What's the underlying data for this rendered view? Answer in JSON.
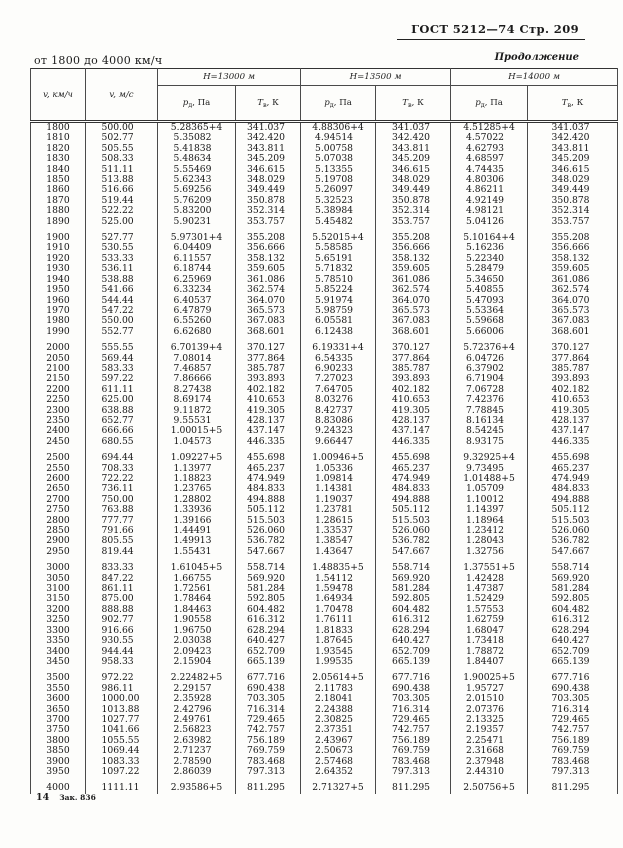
{
  "page": {
    "header_right": "ГОСТ 5212—74 Стр. 209",
    "continuation": "Продолжение",
    "range_label": "от 1800 до 4000 км/ч",
    "footer_page": "14",
    "footer_note": "Зак. 836"
  },
  "table": {
    "columns": {
      "v_kmh": "v, км/ч",
      "v_ms": "v, м/с",
      "p_base": "p",
      "p_sub": "д",
      "p_unit": ", Па",
      "t_base": "T",
      "t_sub": "в",
      "t_unit": ", К"
    },
    "groups": [
      "H=13000 м",
      "H=13500 м",
      "H=14000 м"
    ],
    "row_groups": [
      [
        [
          "1800",
          "500.00",
          "5.28365+4",
          "341.037",
          "4.88306+4",
          "341.037",
          "4.51285+4",
          "341.037"
        ],
        [
          "1810",
          "502.77",
          "5.35082",
          "342.420",
          "4.94514",
          "342.420",
          "4.57022",
          "342.420"
        ],
        [
          "1820",
          "505.55",
          "5.41838",
          "343.811",
          "5.00758",
          "343.811",
          "4.62793",
          "343.811"
        ],
        [
          "1830",
          "508.33",
          "5.48634",
          "345.209",
          "5.07038",
          "345.209",
          "4.68597",
          "345.209"
        ],
        [
          "1840",
          "511.11",
          "5.55469",
          "346.615",
          "5.13355",
          "346.615",
          "4.74435",
          "346.615"
        ],
        [
          "1850",
          "513.88",
          "5.62343",
          "348.029",
          "5.19708",
          "348.029",
          "4.80306",
          "348.029"
        ],
        [
          "1860",
          "516.66",
          "5.69256",
          "349.449",
          "5.26097",
          "349.449",
          "4.86211",
          "349.449"
        ],
        [
          "1870",
          "519.44",
          "5.76209",
          "350.878",
          "5.32523",
          "350.878",
          "4.92149",
          "350.878"
        ],
        [
          "1880",
          "522.22",
          "5.83200",
          "352.314",
          "5.38984",
          "352.314",
          "4.98121",
          "352.314"
        ],
        [
          "1890",
          "525.00",
          "5.90231",
          "353.757",
          "5.45482",
          "353.757",
          "5.04126",
          "353.757"
        ]
      ],
      [
        [
          "1900",
          "527.77",
          "5.97301+4",
          "355.208",
          "5.52015+4",
          "355.208",
          "5.10164+4",
          "355.208"
        ],
        [
          "1910",
          "530.55",
          "6.04409",
          "356.666",
          "5.58585",
          "356.666",
          "5.16236",
          "356.666"
        ],
        [
          "1920",
          "533.33",
          "6.11557",
          "358.132",
          "5.65191",
          "358.132",
          "5.22340",
          "358.132"
        ],
        [
          "1930",
          "536.11",
          "6.18744",
          "359.605",
          "5.71832",
          "359.605",
          "5.28479",
          "359.605"
        ],
        [
          "1940",
          "538.88",
          "6.25969",
          "361.086",
          "5.78510",
          "361.086",
          "5.34650",
          "361.086"
        ],
        [
          "1950",
          "541.66",
          "6.33234",
          "362.574",
          "5.85224",
          "362.574",
          "5.40855",
          "362.574"
        ],
        [
          "1960",
          "544.44",
          "6.40537",
          "364.070",
          "5.91974",
          "364.070",
          "5.47093",
          "364.070"
        ],
        [
          "1970",
          "547.22",
          "6.47879",
          "365.573",
          "5.98759",
          "365.573",
          "5.53364",
          "365.573"
        ],
        [
          "1980",
          "550.00",
          "6.55260",
          "367.083",
          "6.05581",
          "367.083",
          "5.59668",
          "367.083"
        ],
        [
          "1990",
          "552.77",
          "6.62680",
          "368.601",
          "6.12438",
          "368.601",
          "5.66006",
          "368.601"
        ]
      ],
      [
        [
          "2000",
          "555.55",
          "6.70139+4",
          "370.127",
          "6.19331+4",
          "370.127",
          "5.72376+4",
          "370.127"
        ],
        [
          "2050",
          "569.44",
          "7.08014",
          "377.864",
          "6.54335",
          "377.864",
          "6.04726",
          "377.864"
        ],
        [
          "2100",
          "583.33",
          "7.46857",
          "385.787",
          "6.90233",
          "385.787",
          "6.37902",
          "385.787"
        ],
        [
          "2150",
          "597.22",
          "7.86666",
          "393.893",
          "7.27023",
          "393.893",
          "6.71904",
          "393.893"
        ],
        [
          "2200",
          "611.11",
          "8.27438",
          "402.182",
          "7.64705",
          "402.182",
          "7.06728",
          "402.182"
        ],
        [
          "2250",
          "625.00",
          "8.69174",
          "410.653",
          "8.03276",
          "410.653",
          "7.42376",
          "410.653"
        ],
        [
          "2300",
          "638.88",
          "9.11872",
          "419.305",
          "8.42737",
          "419.305",
          "7.78845",
          "419.305"
        ],
        [
          "2350",
          "652.77",
          "9.55531",
          "428.137",
          "8.83086",
          "428.137",
          "8.16134",
          "428.137"
        ],
        [
          "2400",
          "666.66",
          "1.00015+5",
          "437.147",
          "9.24323",
          "437.147",
          "8.54245",
          "437.147"
        ],
        [
          "2450",
          "680.55",
          "1.04573",
          "446.335",
          "9.66447",
          "446.335",
          "8.93175",
          "446.335"
        ]
      ],
      [
        [
          "2500",
          "694.44",
          "1.09227+5",
          "455.698",
          "1.00946+5",
          "455.698",
          "9.32925+4",
          "455.698"
        ],
        [
          "2550",
          "708.33",
          "1.13977",
          "465.237",
          "1.05336",
          "465.237",
          "9.73495",
          "465.237"
        ],
        [
          "2600",
          "722.22",
          "1.18823",
          "474.949",
          "1.09814",
          "474.949",
          "1.01488+5",
          "474.949"
        ],
        [
          "2650",
          "736.11",
          "1.23765",
          "484.833",
          "1.14381",
          "484.833",
          "1.05709",
          "484.833"
        ],
        [
          "2700",
          "750.00",
          "1.28802",
          "494.888",
          "1.19037",
          "494.888",
          "1.10012",
          "494.888"
        ],
        [
          "2750",
          "763.88",
          "1.33936",
          "505.112",
          "1.23781",
          "505.112",
          "1.14397",
          "505.112"
        ],
        [
          "2800",
          "777.77",
          "1.39166",
          "515.503",
          "1.28615",
          "515.503",
          "1.18964",
          "515.503"
        ],
        [
          "2850",
          "791.66",
          "1.44491",
          "526.060",
          "1.33537",
          "526.060",
          "1.23412",
          "526.060"
        ],
        [
          "2900",
          "805.55",
          "1.49913",
          "536.782",
          "1.38547",
          "536.782",
          "1.28043",
          "536.782"
        ],
        [
          "2950",
          "819.44",
          "1.55431",
          "547.667",
          "1.43647",
          "547.667",
          "1.32756",
          "547.667"
        ]
      ],
      [
        [
          "3000",
          "833.33",
          "1.61045+5",
          "558.714",
          "1.48835+5",
          "558.714",
          "1.37551+5",
          "558.714"
        ],
        [
          "3050",
          "847.22",
          "1.66755",
          "569.920",
          "1.54112",
          "569.920",
          "1.42428",
          "569.920"
        ],
        [
          "3100",
          "861.11",
          "1.72561",
          "581.284",
          "1.59478",
          "581.284",
          "1.47387",
          "581.284"
        ],
        [
          "3150",
          "875.00",
          "1.78464",
          "592.805",
          "1.64934",
          "592.805",
          "1.52429",
          "592.805"
        ],
        [
          "3200",
          "888.88",
          "1.84463",
          "604.482",
          "1.70478",
          "604.482",
          "1.57553",
          "604.482"
        ],
        [
          "3250",
          "902.77",
          "1.90558",
          "616.312",
          "1.76111",
          "616.312",
          "1.62759",
          "616.312"
        ],
        [
          "3300",
          "916.66",
          "1.96750",
          "628.294",
          "1.81833",
          "628.294",
          "1.68047",
          "628.294"
        ],
        [
          "3350",
          "930.55",
          "2.03038",
          "640.427",
          "1.87645",
          "640.427",
          "1.73418",
          "640.427"
        ],
        [
          "3400",
          "944.44",
          "2.09423",
          "652.709",
          "1.93545",
          "652.709",
          "1.78872",
          "652.709"
        ],
        [
          "3450",
          "958.33",
          "2.15904",
          "665.139",
          "1.99535",
          "665.139",
          "1.84407",
          "665.139"
        ]
      ],
      [
        [
          "3500",
          "972.22",
          "2.22482+5",
          "677.716",
          "2.05614+5",
          "677.716",
          "1.90025+5",
          "677.716"
        ],
        [
          "3550",
          "986.11",
          "2.29157",
          "690.438",
          "2.11783",
          "690.438",
          "1.95727",
          "690.438"
        ],
        [
          "3600",
          "1000.00",
          "2.35928",
          "703.305",
          "2.18041",
          "703.305",
          "2.01510",
          "703.305"
        ],
        [
          "3650",
          "1013.88",
          "2.42796",
          "716.314",
          "2.24388",
          "716.314",
          "2.07376",
          "716.314"
        ],
        [
          "3700",
          "1027.77",
          "2.49761",
          "729.465",
          "2.30825",
          "729.465",
          "2.13325",
          "729.465"
        ],
        [
          "3750",
          "1041.66",
          "2.56823",
          "742.757",
          "2.37351",
          "742.757",
          "2.19357",
          "742.757"
        ],
        [
          "3800",
          "1055.55",
          "2.63982",
          "756.189",
          "2.43967",
          "756.189",
          "2.25471",
          "756.189"
        ],
        [
          "3850",
          "1069.44",
          "2.71237",
          "769.759",
          "2.50673",
          "769.759",
          "2.31668",
          "769.759"
        ],
        [
          "3900",
          "1083.33",
          "2.78590",
          "783.468",
          "2.57468",
          "783.468",
          "2.37948",
          "783.468"
        ],
        [
          "3950",
          "1097.22",
          "2.86039",
          "797.313",
          "2.64352",
          "797.313",
          "2.44310",
          "797.313"
        ]
      ],
      [
        [
          "4000",
          "1111.11",
          "2.93586+5",
          "811.295",
          "2.71327+5",
          "811.295",
          "2.50756+5",
          "811.295"
        ]
      ]
    ]
  }
}
